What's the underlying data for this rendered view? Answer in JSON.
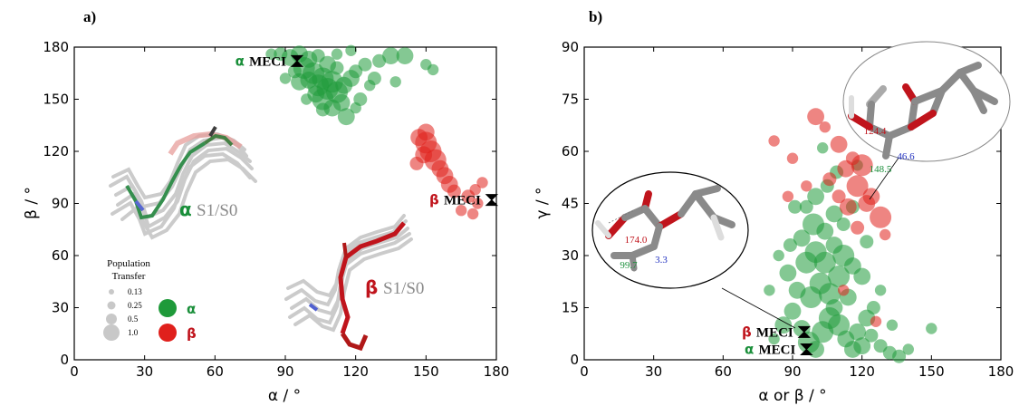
{
  "colors": {
    "alpha": "#1f9a3a",
    "beta": "#e0201c",
    "alpha_label": "#1a8f3a",
    "beta_label": "#c0141c",
    "axis": "#000000",
    "mol_grey": "#8a8a8a",
    "bond_red": "#c0141c",
    "bond_blue": "#2030c0"
  },
  "chart_data": [
    {
      "panel_label": "a)",
      "type": "scatter",
      "xlabel": "α / °",
      "ylabel": "β / °",
      "xlim": [
        0,
        180
      ],
      "ylim": [
        0,
        180
      ],
      "xticks": [
        0,
        30,
        60,
        90,
        120,
        150,
        180
      ],
      "yticks": [
        0,
        30,
        60,
        90,
        120,
        150,
        180
      ],
      "series": [
        {
          "name": "α",
          "color": "#1f9a3a",
          "points": [
            [
              88,
              176,
              0.25
            ],
            [
              92,
              174,
              0.5
            ],
            [
              96,
              176,
              0.5
            ],
            [
              100,
              173,
              0.5
            ],
            [
              104,
              175,
              0.25
            ],
            [
              108,
              170,
              0.5
            ],
            [
              112,
              168,
              0.25
            ],
            [
              98,
              168,
              1.0
            ],
            [
              102,
              165,
              1.0
            ],
            [
              106,
              162,
              1.0
            ],
            [
              110,
              160,
              1.0
            ],
            [
              108,
              156,
              1.0
            ],
            [
              104,
              158,
              1.0
            ],
            [
              100,
              161,
              0.5
            ],
            [
              112,
              154,
              1.0
            ],
            [
              115,
              158,
              0.5
            ],
            [
              118,
              162,
              0.5
            ],
            [
              120,
              166,
              0.25
            ],
            [
              122,
              150,
              0.25
            ],
            [
              114,
              148,
              0.5
            ],
            [
              110,
              145,
              0.5
            ],
            [
              106,
              150,
              1.0
            ],
            [
              103,
              153,
              0.5
            ],
            [
              96,
              160,
              0.5
            ],
            [
              94,
              166,
              0.25
            ],
            [
              116,
              140,
              0.5
            ],
            [
              124,
              170,
              0.25
            ],
            [
              130,
              172,
              0.25
            ],
            [
              135,
              175,
              0.5
            ],
            [
              141,
              175,
              0.5
            ],
            [
              120,
              145,
              0.13
            ],
            [
              126,
              158,
              0.13
            ],
            [
              90,
              162,
              0.13
            ],
            [
              112,
              176,
              0.13
            ],
            [
              128,
              162,
              0.25
            ],
            [
              106,
              144,
              0.25
            ],
            [
              99,
              150,
              0.13
            ],
            [
              150,
              170,
              0.13
            ],
            [
              153,
              167,
              0.13
            ],
            [
              137,
              160,
              0.13
            ],
            [
              84,
              176,
              0.13
            ],
            [
              118,
              178,
              0.13
            ]
          ]
        },
        {
          "name": "β",
          "color": "#e0201c",
          "points": [
            [
              147,
              128,
              0.5
            ],
            [
              150,
              125,
              1.0
            ],
            [
              152,
              120,
              1.0
            ],
            [
              154,
              115,
              1.0
            ],
            [
              149,
              118,
              0.5
            ],
            [
              156,
              110,
              0.5
            ],
            [
              158,
              106,
              0.5
            ],
            [
              160,
              101,
              0.5
            ],
            [
              162,
              97,
              0.25
            ],
            [
              150,
              131,
              0.5
            ],
            [
              146,
              113,
              0.25
            ],
            [
              168,
              94,
              0.25
            ],
            [
              165,
              86,
              0.13
            ],
            [
              170,
              84,
              0.13
            ],
            [
              172,
              90,
              0.13
            ],
            [
              174,
              102,
              0.13
            ],
            [
              171,
              98,
              0.13
            ]
          ]
        }
      ],
      "markers": [
        {
          "name": "α MECI",
          "x": 95,
          "y": 172,
          "color": "#1a8f3a"
        },
        {
          "name": "β MECI",
          "x": 178,
          "y": 92,
          "color": "#c0141c"
        }
      ],
      "legend": {
        "title": "Population Transfer",
        "sizes": [
          "0.13",
          "0.25",
          "0.5",
          "1.0"
        ],
        "entries": [
          "α",
          "β"
        ]
      },
      "annotations": [
        {
          "greek": "α",
          "text": "S1/S0"
        },
        {
          "greek": "β",
          "text": "S1/S0"
        }
      ]
    },
    {
      "panel_label": "b)",
      "type": "scatter",
      "xlabel": "α or β / °",
      "ylabel": "γ / °",
      "xlim": [
        0,
        180
      ],
      "ylim": [
        0,
        90
      ],
      "xticks": [
        0,
        30,
        60,
        90,
        120,
        150,
        180
      ],
      "yticks": [
        0,
        15,
        30,
        45,
        60,
        75,
        90
      ],
      "series": [
        {
          "name": "α",
          "color": "#1f9a3a",
          "points": [
            [
              86,
              10,
              0.5
            ],
            [
              90,
              14,
              0.5
            ],
            [
              94,
              9,
              0.5
            ],
            [
              97,
              5,
              1.0
            ],
            [
              100,
              3,
              0.5
            ],
            [
              103,
              8,
              1.0
            ],
            [
              106,
              12,
              1.0
            ],
            [
              110,
              10,
              1.0
            ],
            [
              113,
              6,
              0.5
            ],
            [
              116,
              3,
              0.5
            ],
            [
              120,
              4,
              0.5
            ],
            [
              124,
              7,
              0.25
            ],
            [
              128,
              4,
              0.25
            ],
            [
              132,
              2,
              0.25
            ],
            [
              136,
              1,
              0.25
            ],
            [
              98,
              18,
              1.0
            ],
            [
              102,
              22,
              1.0
            ],
            [
              106,
              19,
              1.0
            ],
            [
              110,
              24,
              1.0
            ],
            [
              114,
              18,
              0.5
            ],
            [
              92,
              20,
              0.5
            ],
            [
              88,
              25,
              0.5
            ],
            [
              96,
              28,
              1.0
            ],
            [
              100,
              31,
              1.0
            ],
            [
              104,
              28,
              1.0
            ],
            [
              108,
              33,
              0.5
            ],
            [
              112,
              30,
              1.0
            ],
            [
              116,
              27,
              0.5
            ],
            [
              120,
              24,
              0.5
            ],
            [
              94,
              35,
              0.5
            ],
            [
              99,
              39,
              1.0
            ],
            [
              104,
              37,
              0.5
            ],
            [
              108,
              42,
              0.5
            ],
            [
              112,
              39,
              0.25
            ],
            [
              116,
              44,
              0.25
            ],
            [
              100,
              47,
              0.5
            ],
            [
              105,
              50,
              0.25
            ],
            [
              109,
              54,
              0.25
            ],
            [
              91,
              44,
              0.25
            ],
            [
              89,
              33,
              0.25
            ],
            [
              125,
              15,
              0.25
            ],
            [
              128,
              20,
              0.13
            ],
            [
              84,
              30,
              0.13
            ],
            [
              80,
              20,
              0.13
            ],
            [
              133,
              10,
              0.13
            ],
            [
              150,
              9,
              0.13
            ],
            [
              140,
              3,
              0.13
            ],
            [
              82,
              6,
              0.13
            ],
            [
              118,
              56,
              0.13
            ],
            [
              122,
              34,
              0.25
            ],
            [
              108,
              15,
              0.5
            ],
            [
              96,
              44,
              0.25
            ],
            [
              103,
              61,
              0.13
            ],
            [
              122,
              12,
              0.5
            ],
            [
              118,
              8,
              0.5
            ]
          ]
        },
        {
          "name": "β",
          "color": "#e0201c",
          "points": [
            [
              100,
              70,
              0.5
            ],
            [
              110,
              62,
              0.5
            ],
            [
              113,
              55,
              0.5
            ],
            [
              118,
              50,
              1.0
            ],
            [
              122,
              45,
              0.5
            ],
            [
              128,
              41,
              1.0
            ],
            [
              124,
              47,
              0.5
            ],
            [
              120,
              56,
              1.0
            ],
            [
              114,
              44,
              0.5
            ],
            [
              110,
              47,
              0.25
            ],
            [
              118,
              38,
              0.25
            ],
            [
              106,
              52,
              0.25
            ],
            [
              116,
              58,
              0.25
            ],
            [
              82,
              63,
              0.13
            ],
            [
              104,
              67,
              0.13
            ],
            [
              90,
              58,
              0.13
            ],
            [
              96,
              50,
              0.13
            ],
            [
              130,
              36,
              0.13
            ],
            [
              112,
              20,
              0.13
            ],
            [
              126,
              11,
              0.13
            ],
            [
              88,
              47,
              0.13
            ]
          ]
        }
      ],
      "markers": [
        {
          "name": "β MECI",
          "x": 95,
          "y": 8,
          "color": "#c0141c"
        },
        {
          "name": "α MECI",
          "x": 96,
          "y": 3,
          "color": "#1a8f3a"
        }
      ],
      "insets": [
        {
          "values": [
            "124.4",
            "46.6",
            "148.5"
          ]
        },
        {
          "values": [
            "174.0",
            "99.7",
            "3.3"
          ]
        }
      ]
    }
  ]
}
